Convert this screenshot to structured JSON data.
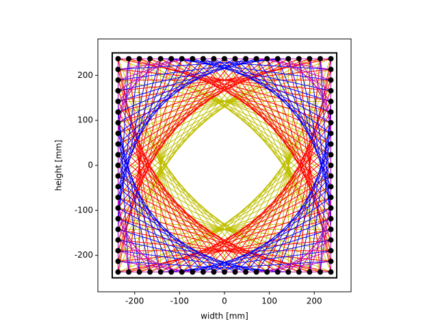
{
  "chart_data": {
    "type": "string-art",
    "xlabel": "width [mm]",
    "ylabel": "height [mm]",
    "xlim": [
      -282,
      282
    ],
    "ylim": [
      -281,
      281
    ],
    "xticks": [
      -200,
      -100,
      0,
      100,
      200
    ],
    "yticks": [
      -200,
      -100,
      0,
      100,
      200
    ],
    "frame_color": "#000000",
    "pin_color": "#000000",
    "x": [
      -237,
      -213.3,
      -189.6,
      -165.9,
      -142.2,
      -118.5,
      -94.8,
      -71.1,
      -47.4,
      -23.7,
      0,
      23.7,
      47.4,
      71.1,
      94.8,
      118.5,
      142.2,
      165.9,
      189.6,
      213.3,
      237,
      237,
      237,
      237,
      237,
      237,
      237,
      237,
      237,
      237,
      237,
      237,
      237,
      237,
      237,
      237,
      237,
      237,
      237,
      237,
      237,
      213.3,
      189.6,
      165.9,
      142.2,
      118.5,
      94.8,
      71.1,
      47.4,
      23.7,
      0,
      -23.7,
      -47.4,
      -71.1,
      -94.8,
      -118.5,
      -142.2,
      -165.9,
      -189.6,
      -213.3,
      -237,
      -237,
      -237,
      -237,
      -237,
      -237,
      -237,
      -237,
      -237,
      -237,
      -237,
      -237,
      -237,
      -237,
      -237,
      -237,
      -237,
      -237,
      -237,
      -237
    ],
    "y": [
      237,
      237,
      237,
      237,
      237,
      237,
      237,
      237,
      237,
      237,
      237,
      237,
      237,
      237,
      237,
      237,
      237,
      237,
      237,
      237,
      237,
      213.3,
      189.6,
      165.9,
      142.2,
      118.5,
      94.8,
      71.1,
      47.4,
      23.7,
      0,
      -23.7,
      -47.4,
      -71.1,
      -94.8,
      -118.5,
      -142.2,
      -165.9,
      -189.6,
      -213.3,
      -237,
      -237,
      -237,
      -237,
      -237,
      -237,
      -237,
      -237,
      -237,
      -237,
      -237,
      -237,
      -237,
      -237,
      -237,
      -237,
      -237,
      -237,
      -237,
      -237,
      -237,
      -213.3,
      -189.6,
      -165.9,
      -142.2,
      -118.5,
      -94.8,
      -71.1,
      -47.4,
      -23.7,
      0,
      23.7,
      47.4,
      71.1,
      94.8,
      118.5,
      142.2,
      165.9,
      189.6,
      213.3
    ],
    "strings": [
      {
        "color": "#bfbf00",
        "offset": 28
      },
      {
        "color": "#ff0000",
        "offset": 24
      },
      {
        "color": "#0000ff",
        "offset": 17
      },
      {
        "color": "#bf00bf",
        "offset": 8
      }
    ]
  }
}
